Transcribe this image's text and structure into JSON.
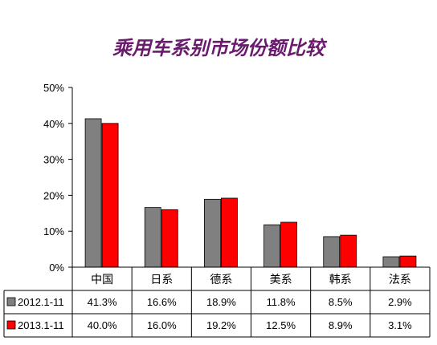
{
  "chart_data": {
    "type": "bar",
    "title": "乘用车系别市场份额比较",
    "categories": [
      "中国",
      "日系",
      "德系",
      "美系",
      "韩系",
      "法系"
    ],
    "series": [
      {
        "name": "2012.1-11",
        "color": "#808080",
        "values": [
          41.3,
          16.6,
          18.9,
          11.8,
          8.5,
          2.9
        ],
        "labels": [
          "41.3%",
          "16.6%",
          "18.9%",
          "11.8%",
          "8.5%",
          "2.9%"
        ]
      },
      {
        "name": "2013.1-11",
        "color": "#ff0000",
        "values": [
          40.0,
          16.0,
          19.2,
          12.5,
          8.9,
          3.1
        ],
        "labels": [
          "40.0%",
          "16.0%",
          "19.2%",
          "12.5%",
          "8.9%",
          "3.1%"
        ]
      }
    ],
    "ylim": [
      0,
      50
    ],
    "yticks": [
      "0%",
      "10%",
      "20%",
      "30%",
      "40%",
      "50%"
    ],
    "grid": false,
    "legend": "data-table"
  }
}
